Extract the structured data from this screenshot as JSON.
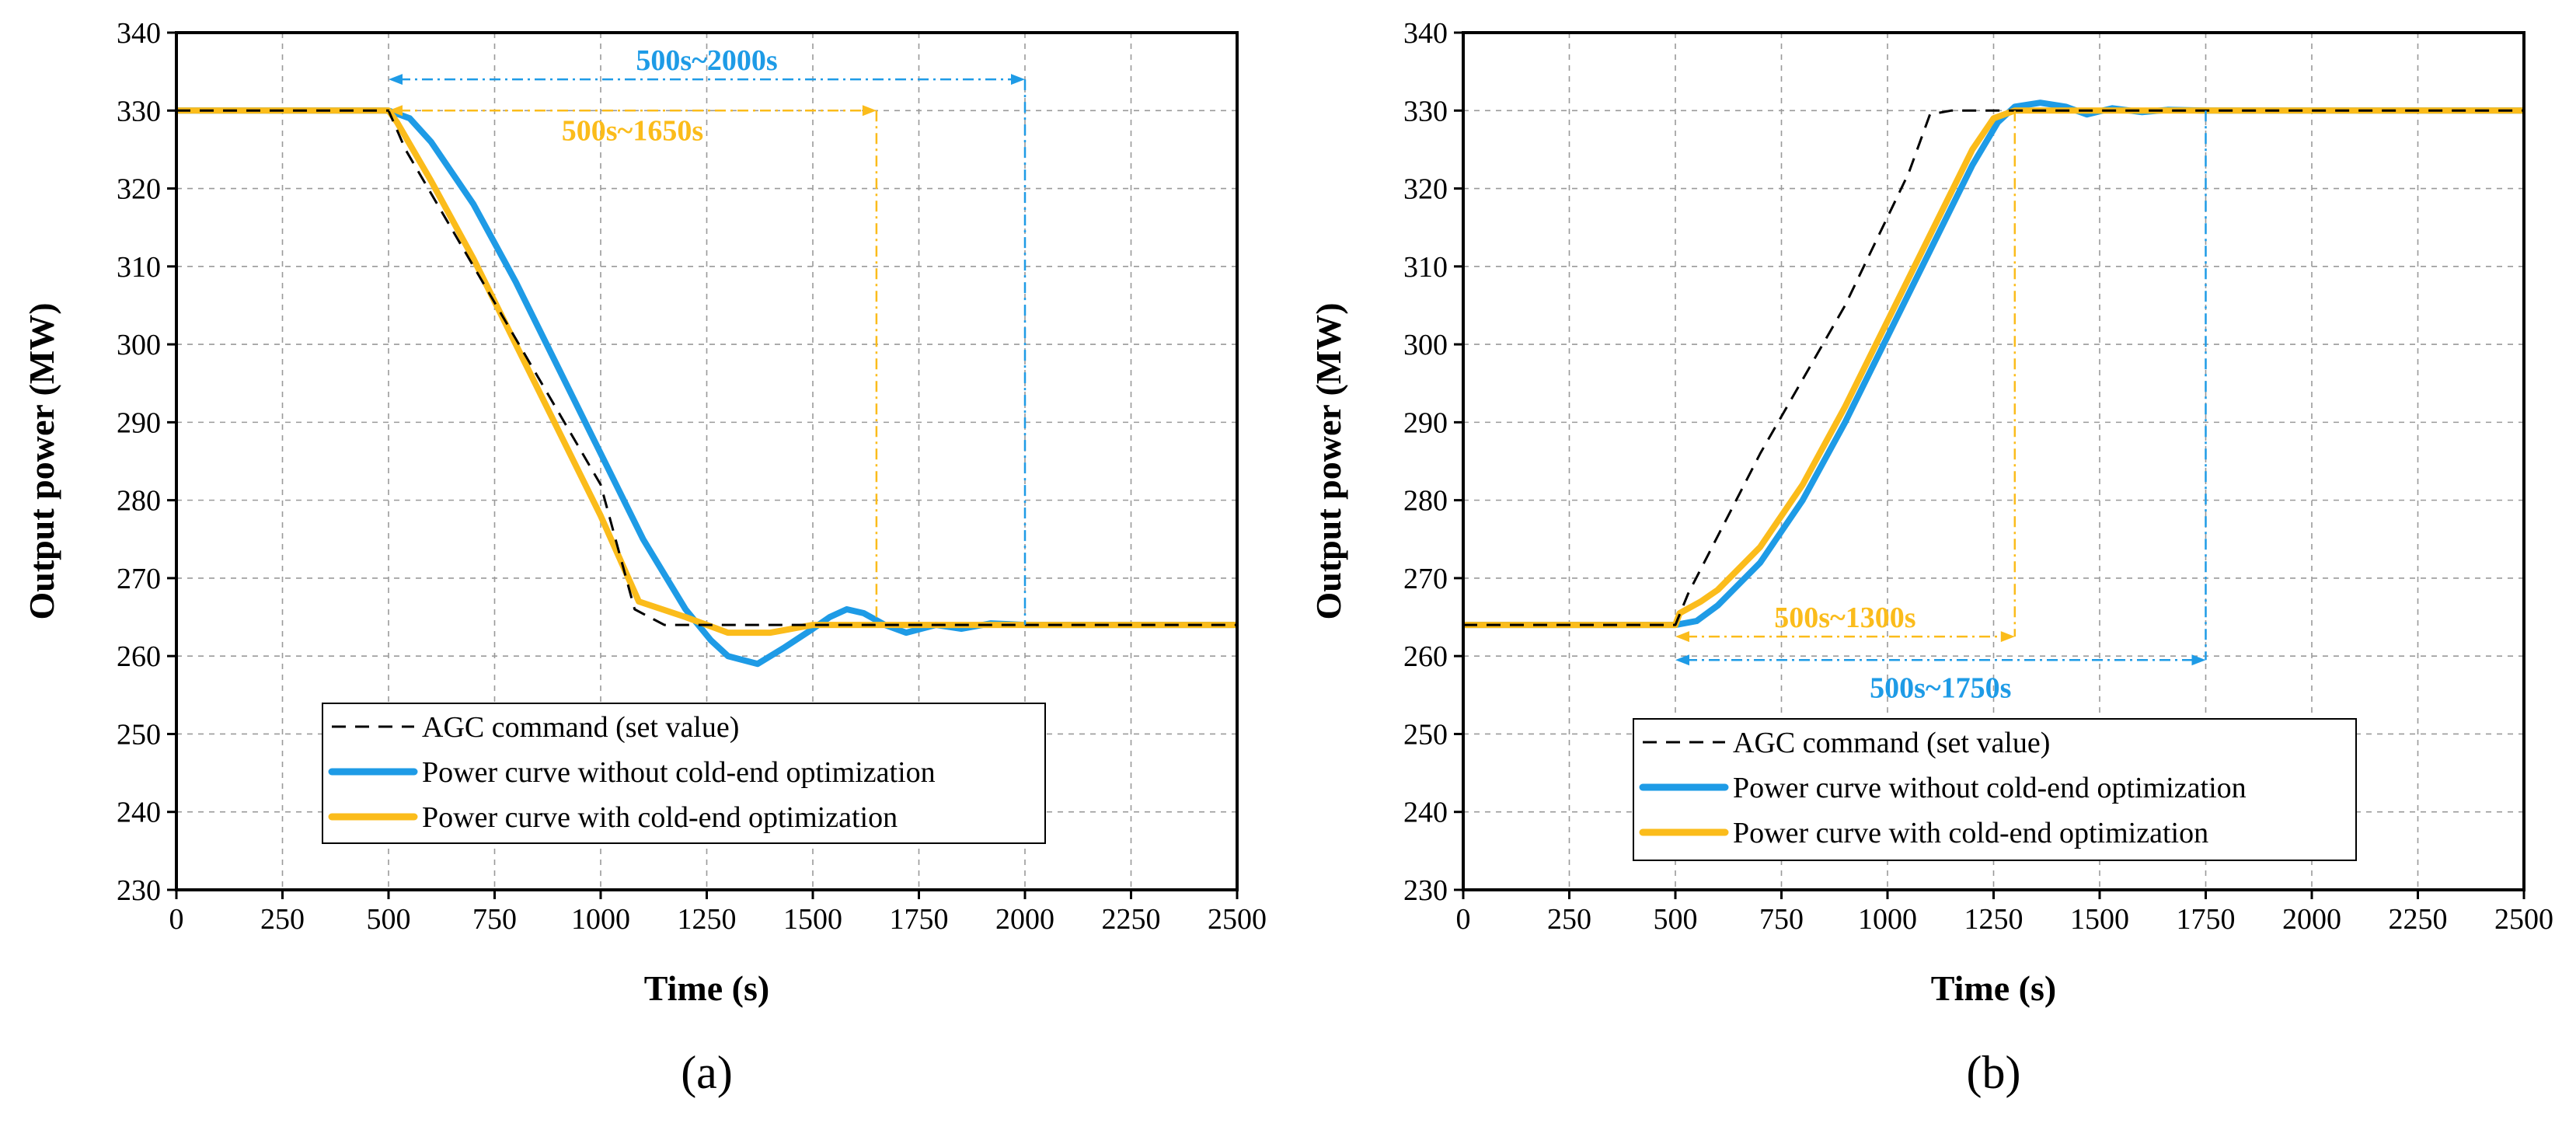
{
  "chart_data": [
    {
      "type": "line",
      "panel_label": "(a)",
      "xlabel": "Time (s)",
      "ylabel": "Output power (MW)",
      "xlim": [
        0,
        2500
      ],
      "ylim": [
        230,
        340
      ],
      "xticks": [
        0,
        250,
        500,
        750,
        1000,
        1250,
        1500,
        1750,
        2000,
        2250,
        2500
      ],
      "yticks": [
        230,
        240,
        250,
        260,
        270,
        280,
        290,
        300,
        310,
        320,
        330,
        340
      ],
      "grid": true,
      "legend_position": "bottom-left",
      "series": [
        {
          "name": "AGC command (set value)",
          "style": "dashed",
          "color": "#000000",
          "points": [
            [
              0,
              330
            ],
            [
              500,
              330
            ],
            [
              540,
              325
            ],
            [
              1000,
              282
            ],
            [
              1080,
              266
            ],
            [
              1150,
              264
            ],
            [
              1600,
              264
            ],
            [
              2500,
              264
            ]
          ]
        },
        {
          "name": "Power curve without cold-end optimization",
          "style": "solid",
          "color": "#1e9be6",
          "points": [
            [
              0,
              330
            ],
            [
              500,
              330
            ],
            [
              550,
              329
            ],
            [
              600,
              326
            ],
            [
              700,
              318
            ],
            [
              800,
              308
            ],
            [
              900,
              297
            ],
            [
              1000,
              286
            ],
            [
              1100,
              275
            ],
            [
              1200,
              266
            ],
            [
              1260,
              262
            ],
            [
              1300,
              260
            ],
            [
              1370,
              259
            ],
            [
              1430,
              261
            ],
            [
              1500,
              263.5
            ],
            [
              1540,
              265
            ],
            [
              1580,
              266
            ],
            [
              1620,
              265.5
            ],
            [
              1670,
              264
            ],
            [
              1720,
              263
            ],
            [
              1790,
              264
            ],
            [
              1850,
              263.5
            ],
            [
              1920,
              264.2
            ],
            [
              2000,
              264
            ],
            [
              2500,
              264
            ]
          ]
        },
        {
          "name": "Power curve with cold-end optimization",
          "style": "solid",
          "color": "#fbbc1b",
          "points": [
            [
              0,
              330
            ],
            [
              500,
              330
            ],
            [
              520,
              328.5
            ],
            [
              600,
              321
            ],
            [
              700,
              311
            ],
            [
              800,
              300
            ],
            [
              900,
              289
            ],
            [
              1000,
              278
            ],
            [
              1090,
              267
            ],
            [
              1200,
              265
            ],
            [
              1300,
              263
            ],
            [
              1400,
              263
            ],
            [
              1500,
              264
            ],
            [
              2500,
              264
            ]
          ]
        }
      ],
      "annotations": [
        {
          "text": "500s~2000s",
          "color": "#1e9be6",
          "x_start": 500,
          "x_end": 2000,
          "arrow_y": 334,
          "label_y": 336.5
        },
        {
          "text": "500s~1650s",
          "color": "#fbbc1b",
          "x_start": 500,
          "x_end": 1650,
          "arrow_y": 330,
          "label_y": 327.5
        }
      ]
    },
    {
      "type": "line",
      "panel_label": "(b)",
      "xlabel": "Time (s)",
      "ylabel": "Output power (MW)",
      "xlim": [
        0,
        2500
      ],
      "ylim": [
        230,
        340
      ],
      "xticks": [
        0,
        250,
        500,
        750,
        1000,
        1250,
        1500,
        1750,
        2000,
        2250,
        2500
      ],
      "yticks": [
        230,
        240,
        250,
        260,
        270,
        280,
        290,
        300,
        310,
        320,
        330,
        340
      ],
      "grid": true,
      "legend_position": "bottom-left",
      "series": [
        {
          "name": "AGC command (set value)",
          "style": "dashed",
          "color": "#000000",
          "points": [
            [
              0,
              264
            ],
            [
              500,
              264
            ],
            [
              530,
              268
            ],
            [
              700,
              286
            ],
            [
              900,
              305
            ],
            [
              1050,
              322
            ],
            [
              1100,
              329.5
            ],
            [
              1150,
              330
            ],
            [
              2500,
              330
            ]
          ]
        },
        {
          "name": "Power curve without cold-end optimization",
          "style": "solid",
          "color": "#1e9be6",
          "points": [
            [
              0,
              264
            ],
            [
              500,
              264
            ],
            [
              550,
              264.5
            ],
            [
              600,
              266.5
            ],
            [
              700,
              272
            ],
            [
              800,
              280
            ],
            [
              900,
              290
            ],
            [
              1000,
              301
            ],
            [
              1100,
              312
            ],
            [
              1200,
              323
            ],
            [
              1260,
              328.5
            ],
            [
              1300,
              330.5
            ],
            [
              1360,
              331
            ],
            [
              1420,
              330.5
            ],
            [
              1470,
              329.5
            ],
            [
              1530,
              330.3
            ],
            [
              1600,
              329.8
            ],
            [
              1660,
              330.1
            ],
            [
              1750,
              330
            ],
            [
              2500,
              330
            ]
          ]
        },
        {
          "name": "Power curve with cold-end optimization",
          "style": "solid",
          "color": "#fbbc1b",
          "points": [
            [
              0,
              264
            ],
            [
              500,
              264
            ],
            [
              510,
              265.5
            ],
            [
              560,
              267
            ],
            [
              600,
              268.5
            ],
            [
              700,
              274
            ],
            [
              800,
              282
            ],
            [
              900,
              292
            ],
            [
              1000,
              303
            ],
            [
              1100,
              314
            ],
            [
              1200,
              325
            ],
            [
              1250,
              329
            ],
            [
              1300,
              330
            ],
            [
              2500,
              330
            ]
          ]
        }
      ],
      "annotations": [
        {
          "text": "500s~1300s",
          "color": "#fbbc1b",
          "x_start": 500,
          "x_end": 1300,
          "arrow_y": 262.5,
          "label_y": 265
        },
        {
          "text": "500s~1750s",
          "color": "#1e9be6",
          "x_start": 500,
          "x_end": 1750,
          "arrow_y": 259.5,
          "label_y": 256
        }
      ]
    }
  ]
}
